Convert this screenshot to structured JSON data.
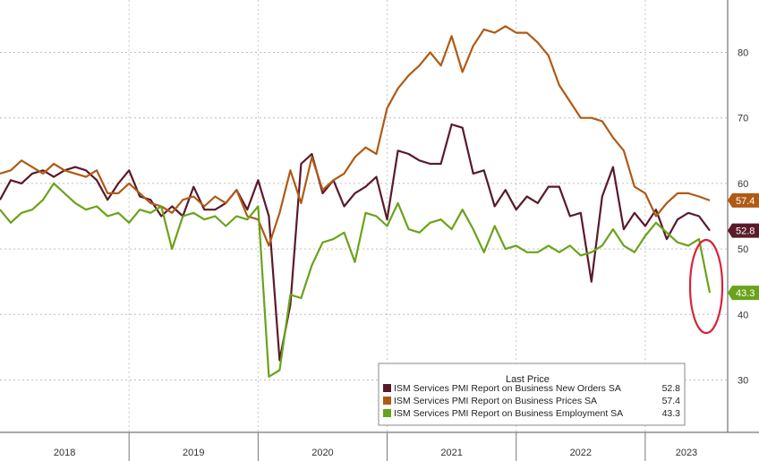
{
  "chart_data": {
    "type": "line",
    "ylim": [
      22,
      88
    ],
    "y_ticks": [
      30,
      40,
      50,
      60,
      70,
      80
    ],
    "x_labels": [
      "2018",
      "2019",
      "2020",
      "2021",
      "2022",
      "2023"
    ],
    "grid": true,
    "legend": {
      "placement": "bottom-right",
      "title": "Last Price"
    },
    "series": [
      {
        "name": "ISM Services PMI Report on Business New Orders SA",
        "last": "52.8",
        "color": "#5a1a2a",
        "values": [
          57.5,
          60.5,
          60.0,
          61.5,
          62.0,
          61.0,
          62.0,
          62.5,
          62.0,
          60.5,
          57.5,
          60.0,
          62.0,
          58.0,
          57.5,
          55.0,
          56.5,
          55.0,
          59.5,
          56.0,
          56.0,
          57.0,
          59.0,
          56.0,
          60.5,
          55.0,
          33.0,
          41.5,
          63.0,
          64.5,
          58.5,
          60.5,
          56.5,
          58.5,
          59.5,
          61.0,
          54.5,
          65.0,
          64.5,
          63.5,
          63.0,
          63.0,
          69.0,
          68.5,
          61.5,
          62.0,
          56.5,
          59.0,
          56.0,
          58.0,
          57.0,
          59.5,
          59.5,
          55.0,
          55.5,
          45.0,
          58.0,
          62.5,
          53.0,
          55.5,
          53.5,
          56.0,
          51.5,
          54.5,
          55.5,
          55.0,
          52.8
        ]
      },
      {
        "name": "ISM Services PMI Report on Business Prices SA",
        "last": "57.4",
        "color": "#b05a14",
        "values": [
          61.5,
          62.0,
          63.5,
          62.5,
          61.5,
          63.0,
          62.0,
          61.5,
          61.0,
          62.0,
          58.5,
          58.5,
          60.0,
          58.5,
          57.0,
          56.5,
          55.5,
          57.5,
          58.0,
          56.5,
          58.0,
          57.0,
          59.0,
          55.0,
          54.5,
          50.5,
          55.5,
          62.0,
          57.0,
          64.0,
          59.0,
          60.5,
          61.5,
          64.0,
          65.5,
          64.5,
          71.5,
          74.5,
          76.5,
          78.0,
          80.0,
          78.0,
          82.5,
          77.0,
          81.0,
          83.5,
          83.0,
          84.0,
          83.0,
          83.0,
          81.5,
          79.5,
          75.0,
          72.5,
          70.0,
          70.0,
          69.5,
          67.0,
          65.0,
          59.5,
          58.5,
          55.0,
          57.0,
          58.5,
          58.5,
          58.0,
          57.4
        ]
      },
      {
        "name": "ISM Services PMI Report on Business Employment SA",
        "last": "43.3",
        "color": "#6aa31a",
        "values": [
          56.0,
          54.0,
          55.5,
          56.0,
          57.5,
          60.0,
          58.5,
          57.0,
          56.0,
          56.5,
          55.0,
          55.5,
          54.0,
          56.0,
          55.5,
          56.5,
          50.0,
          55.0,
          55.5,
          54.5,
          55.0,
          53.5,
          55.0,
          54.5,
          56.5,
          30.5,
          31.5,
          43.0,
          42.5,
          47.5,
          51.0,
          51.5,
          52.5,
          48.0,
          55.5,
          55.0,
          53.5,
          57.0,
          53.0,
          52.5,
          54.0,
          54.5,
          53.0,
          56.0,
          53.0,
          49.5,
          53.5,
          50.0,
          50.5,
          49.5,
          49.5,
          50.5,
          49.5,
          50.5,
          49.0,
          49.5,
          50.5,
          53.0,
          50.5,
          49.5,
          52.0,
          54.0,
          52.5,
          51.0,
          50.5,
          51.5,
          43.3
        ]
      }
    ]
  }
}
